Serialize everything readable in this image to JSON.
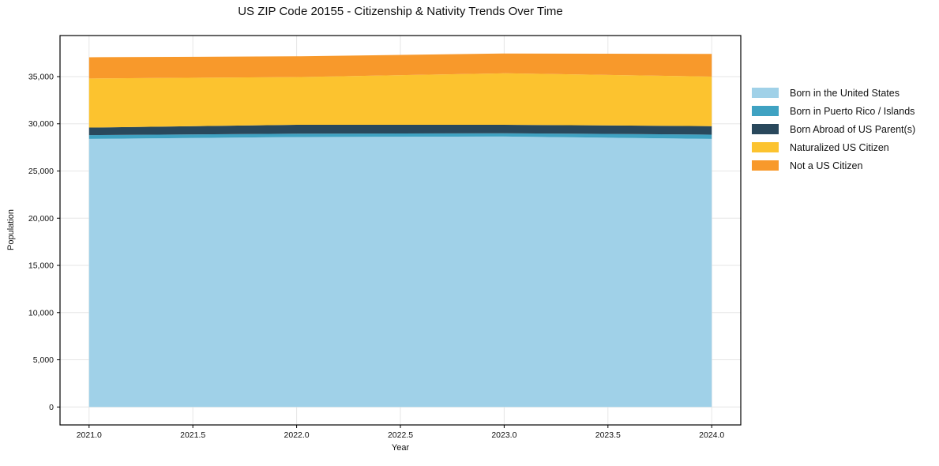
{
  "chart_data": {
    "type": "area",
    "stacked": true,
    "title": "US ZIP Code 20155 - Citizenship & Nativity Trends Over Time",
    "xlabel": "Year",
    "ylabel": "Population",
    "x": [
      2021,
      2022,
      2023,
      2024
    ],
    "series": [
      {
        "name": "Born in the United States",
        "color": "#A0D1E8",
        "values": [
          28400,
          28600,
          28650,
          28400
        ]
      },
      {
        "name": "Born in Puerto Rico / Islands",
        "color": "#3FA2C2",
        "values": [
          400,
          350,
          350,
          450
        ]
      },
      {
        "name": "Born Abroad of US Parent(s)",
        "color": "#29485C",
        "values": [
          800,
          950,
          900,
          900
        ]
      },
      {
        "name": "Naturalized US Citizen",
        "color": "#FCC32F",
        "values": [
          5200,
          5050,
          5450,
          5250
        ]
      },
      {
        "name": "Not a US Citizen",
        "color": "#F8992B",
        "values": [
          2250,
          2200,
          2100,
          2400
        ]
      }
    ],
    "stacked_totals": [
      37050,
      37150,
      37450,
      37400
    ],
    "xticks": {
      "values": [
        2021.0,
        2021.5,
        2022.0,
        2022.5,
        2023.0,
        2023.5,
        2024.0
      ],
      "labels": [
        "2021.0",
        "2021.5",
        "2022.0",
        "2022.5",
        "2023.0",
        "2023.5",
        "2024.0"
      ]
    },
    "yticks": {
      "values": [
        0,
        5000,
        10000,
        15000,
        20000,
        25000,
        30000,
        35000
      ],
      "labels": [
        "0",
        "5,000",
        "10,000",
        "15,000",
        "20,000",
        "25,000",
        "30,000",
        "35,000"
      ]
    },
    "xlim": [
      2020.86,
      2024.14
    ],
    "ylim": [
      -1900,
      39350
    ],
    "grid": true,
    "grid_color": "#e6e6e6",
    "frame_color": "#000000",
    "tick_label_color": "#111111",
    "legend_position": "right"
  }
}
